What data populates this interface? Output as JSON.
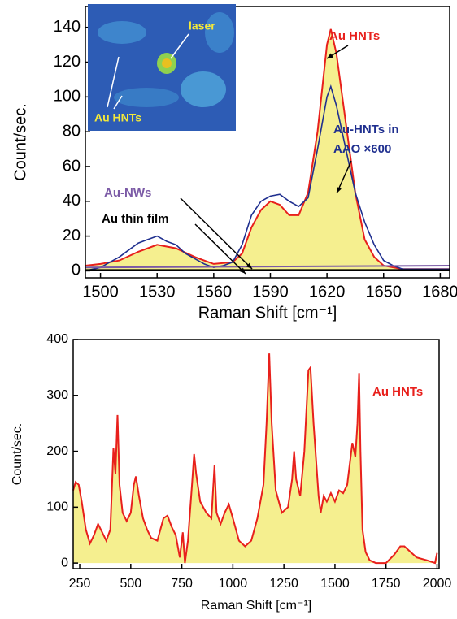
{
  "chart_data": [
    {
      "type": "line",
      "x_label": "Raman Shift [cm⁻¹]",
      "y_label": "Count/sec.",
      "xlim": [
        1492,
        1685
      ],
      "ylim": [
        -4,
        152
      ],
      "xticks": [
        1500,
        1530,
        1560,
        1590,
        1620,
        1650,
        1680
      ],
      "yticks": [
        0,
        20,
        40,
        60,
        80,
        100,
        120,
        140
      ],
      "inset_labels": [
        "laser",
        "Au HNTs"
      ],
      "series": [
        {
          "name": "Au HNTs",
          "color": "#e8201c",
          "fill": "#f5ef8f",
          "x": [
            1492,
            1500,
            1510,
            1520,
            1530,
            1540,
            1550,
            1560,
            1570,
            1575,
            1580,
            1585,
            1590,
            1595,
            1600,
            1605,
            1610,
            1615,
            1620,
            1622,
            1625,
            1630,
            1635,
            1640,
            1645,
            1650,
            1660,
            1670,
            1685
          ],
          "values": [
            3,
            4,
            6,
            11,
            15,
            13,
            8,
            4,
            5,
            10,
            25,
            35,
            40,
            38,
            32,
            32,
            45,
            80,
            130,
            139,
            125,
            85,
            45,
            18,
            8,
            3,
            1,
            1,
            1
          ]
        },
        {
          "name": "Au-HNTs in AAO ×600",
          "color": "#1f2f8f",
          "x": [
            1492,
            1500,
            1505,
            1510,
            1515,
            1520,
            1525,
            1530,
            1535,
            1540,
            1545,
            1550,
            1555,
            1560,
            1565,
            1570,
            1575,
            1580,
            1585,
            1590,
            1595,
            1600,
            1605,
            1610,
            1615,
            1620,
            1622,
            1625,
            1630,
            1635,
            1640,
            1645,
            1650,
            1655,
            1660,
            1670,
            1685
          ],
          "values": [
            0,
            2,
            5,
            8,
            12,
            16,
            18,
            20,
            17,
            15,
            10,
            7,
            4,
            2,
            3,
            5,
            15,
            32,
            40,
            43,
            44,
            40,
            37,
            42,
            70,
            100,
            106,
            95,
            70,
            45,
            28,
            15,
            6,
            3,
            1,
            1,
            1
          ]
        },
        {
          "name": "Au-NWs",
          "color": "#7b5aa6",
          "x": [
            1492,
            1685
          ],
          "values": [
            2,
            3
          ]
        },
        {
          "name": "Au thin film",
          "color": "#000000",
          "x": [
            1492,
            1685
          ],
          "values": [
            0.5,
            0.5
          ]
        }
      ]
    },
    {
      "type": "line",
      "x_label": "Raman Shift [cm⁻¹]",
      "y_label": "Count/sec.",
      "xlim": [
        218,
        2010
      ],
      "ylim": [
        -10,
        400
      ],
      "xticks": [
        250,
        500,
        750,
        1000,
        1250,
        1500,
        1750,
        2000
      ],
      "yticks": [
        0,
        100,
        200,
        300,
        400
      ],
      "series": [
        {
          "name": "Au HNTs",
          "color": "#e8201c",
          "fill": "#f5ef8f",
          "x": [
            218,
            230,
            245,
            260,
            280,
            300,
            320,
            340,
            360,
            380,
            400,
            415,
            425,
            435,
            445,
            460,
            480,
            500,
            515,
            525,
            540,
            560,
            580,
            600,
            630,
            660,
            680,
            700,
            720,
            740,
            755,
            765,
            780,
            800,
            810,
            820,
            840,
            870,
            895,
            910,
            920,
            940,
            960,
            980,
            1000,
            1030,
            1060,
            1090,
            1120,
            1150,
            1165,
            1178,
            1190,
            1210,
            1240,
            1270,
            1290,
            1300,
            1310,
            1330,
            1350,
            1370,
            1380,
            1395,
            1420,
            1430,
            1445,
            1460,
            1480,
            1500,
            1520,
            1540,
            1560,
            1585,
            1600,
            1610,
            1618,
            1625,
            1635,
            1650,
            1670,
            1700,
            1750,
            1790,
            1820,
            1840,
            1870,
            1900,
            1950,
            1990,
            2000
          ],
          "values": [
            130,
            145,
            140,
            110,
            60,
            35,
            50,
            70,
            55,
            40,
            60,
            205,
            160,
            265,
            140,
            90,
            75,
            90,
            140,
            155,
            120,
            80,
            60,
            45,
            40,
            80,
            85,
            65,
            50,
            10,
            55,
            0,
            40,
            140,
            195,
            160,
            110,
            90,
            80,
            175,
            90,
            70,
            90,
            105,
            80,
            40,
            30,
            40,
            80,
            140,
            250,
            375,
            250,
            130,
            90,
            100,
            150,
            200,
            150,
            120,
            200,
            345,
            350,
            250,
            120,
            90,
            120,
            110,
            125,
            110,
            130,
            125,
            140,
            215,
            190,
            250,
            340,
            200,
            60,
            20,
            5,
            0,
            0,
            15,
            30,
            30,
            20,
            10,
            5,
            0,
            18
          ]
        }
      ]
    }
  ]
}
